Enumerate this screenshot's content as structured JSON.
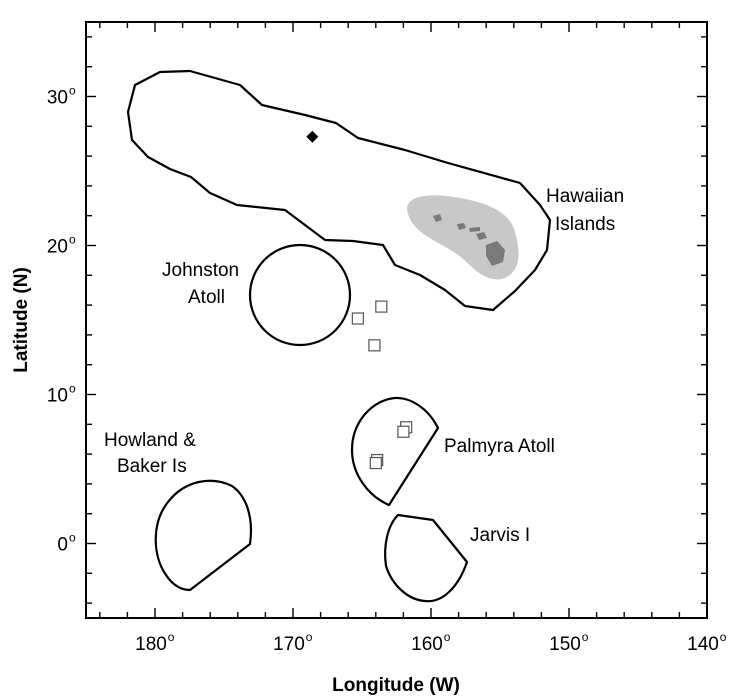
{
  "axes": {
    "x_label": "Longitude (W)",
    "y_label": "Latitude (N)",
    "x_ticks": [
      {
        "value": 180,
        "label": "180",
        "sup": "o"
      },
      {
        "value": 170,
        "label": "170",
        "sup": "o"
      },
      {
        "value": 160,
        "label": "160",
        "sup": "o"
      },
      {
        "value": 150,
        "label": "150",
        "sup": "o"
      },
      {
        "value": 140,
        "label": "140",
        "sup": "o"
      }
    ],
    "y_ticks": [
      {
        "value": 30,
        "label": "30",
        "sup": "o"
      },
      {
        "value": 20,
        "label": "20",
        "sup": "o"
      },
      {
        "value": 10,
        "label": "10",
        "sup": "o"
      },
      {
        "value": 0,
        "label": "0",
        "sup": "o"
      }
    ],
    "lon_range": [
      185,
      140
    ],
    "lat_range": [
      -5,
      35
    ]
  },
  "labels": {
    "hawaiian_line1": "Hawaiian",
    "hawaiian_line2": "Islands",
    "johnston_line1": "Johnston",
    "johnston_line2": "Atoll",
    "palmyra": "Palmyra Atoll",
    "howland_line1": "Howland &",
    "howland_line2": "Baker Is",
    "jarvis": "Jarvis I"
  },
  "markers": {
    "diamond": {
      "lon": 168.6,
      "lat": 27.3
    },
    "squares": [
      {
        "lon": 165.3,
        "lat": 15.1
      },
      {
        "lon": 163.6,
        "lat": 15.9
      },
      {
        "lon": 164.1,
        "lat": 13.3
      },
      {
        "lon": 161.8,
        "lat": 7.8
      },
      {
        "lon": 162.0,
        "lat": 7.5
      },
      {
        "lon": 163.9,
        "lat": 5.6
      },
      {
        "lon": 164.0,
        "lat": 5.4
      }
    ]
  },
  "colors": {
    "island_fill": "#7a7a7a",
    "island_shelf": "#c8c8c8",
    "outline": "#000000"
  }
}
